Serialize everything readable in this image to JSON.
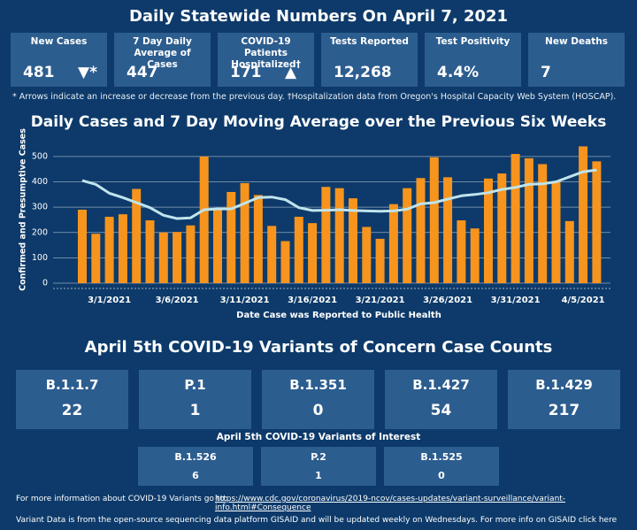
{
  "header": {
    "title": "Daily Statewide Numbers On April 7, 2021"
  },
  "stats": [
    {
      "label": "New Cases",
      "value": "481",
      "indicator": "▼*"
    },
    {
      "label": "7 Day Daily Average of Cases",
      "value": "447"
    },
    {
      "label": "COVID-19 Patients Hospitalized†",
      "value": "171",
      "indicator": "▲"
    },
    {
      "label": "Tests Reported",
      "value": "12,268"
    },
    {
      "label": "Test Positivity",
      "value": "4.4%"
    },
    {
      "label": "New Deaths",
      "value": "7"
    }
  ],
  "footnote": "* Arrows indicate an increase or decrease from the previous day. †Hospitalization data from Oregon's Hospital Capacity Web System (HOSCAP).",
  "chart_data": {
    "type": "bar",
    "title": "Daily Cases and 7 Day Moving Average over the Previous Six Weeks",
    "y_label": "Confirmed and Presumptive Cases",
    "x_label": "Date Case was Reported to Public Health",
    "categories": [
      null,
      null,
      "3/1/2021",
      null,
      null,
      null,
      null,
      "3/6/2021",
      null,
      null,
      null,
      null,
      "3/11/2021",
      null,
      null,
      null,
      null,
      "3/16/2021",
      null,
      null,
      null,
      null,
      "3/21/2021",
      null,
      null,
      null,
      null,
      "3/26/2021",
      null,
      null,
      null,
      null,
      "3/31/2021",
      null,
      null,
      null,
      null,
      "4/5/2021",
      null
    ],
    "series": [
      {
        "type": "bar",
        "color": "#f7941d",
        "values": [
          290,
          195,
          262,
          272,
          372,
          248,
          200,
          202,
          228,
          500,
          290,
          360,
          395,
          348,
          226,
          166,
          262,
          237,
          380,
          375,
          335,
          222,
          175,
          312,
          375,
          415,
          497,
          418,
          248,
          216,
          413,
          433,
          510,
          493,
          470,
          400,
          245,
          540,
          481
        ]
      },
      {
        "type": "line",
        "color": "#bfe4ec",
        "values": [
          405,
          390,
          355,
          338,
          318,
          298,
          268,
          255,
          258,
          290,
          293,
          293,
          315,
          338,
          340,
          330,
          298,
          287,
          288,
          290,
          287,
          285,
          284,
          285,
          292,
          313,
          318,
          332,
          345,
          350,
          357,
          370,
          378,
          390,
          392,
          400,
          420,
          440,
          447
        ]
      }
    ],
    "ylim": [
      0,
      580
    ],
    "yticks": [
      0,
      100,
      200,
      300,
      400,
      500
    ],
    "grid": true
  },
  "variants_of_concern": {
    "title": "April 5th  COVID-19 Variants of Concern Case Counts",
    "cards": [
      {
        "name": "B.1.1.7",
        "count": 22
      },
      {
        "name": "P.1",
        "count": 1
      },
      {
        "name": "B.1.351",
        "count": 0
      },
      {
        "name": "B.1.427",
        "count": 54
      },
      {
        "name": "B.1.429",
        "count": 217
      }
    ]
  },
  "variants_of_interest": {
    "title": "April 5th COVID-19 Variants of Interest",
    "cards": [
      {
        "name": "B.1.526",
        "count": 6
      },
      {
        "name": "P.2",
        "count": 1
      },
      {
        "name": "B.1.525",
        "count": 0
      }
    ]
  },
  "footer": {
    "info": "For more information about COVID-19 Variants go to:",
    "link": "https://www.cdc.gov/coronavirus/2019-ncov/cases-updates/variant-surveillance/variant-info.html#Consequence",
    "gisaid": "Variant Data is from the open-source sequencing data platform GISAID and will be updated weekly on Wednesdays. For more info on GISAID click here"
  }
}
